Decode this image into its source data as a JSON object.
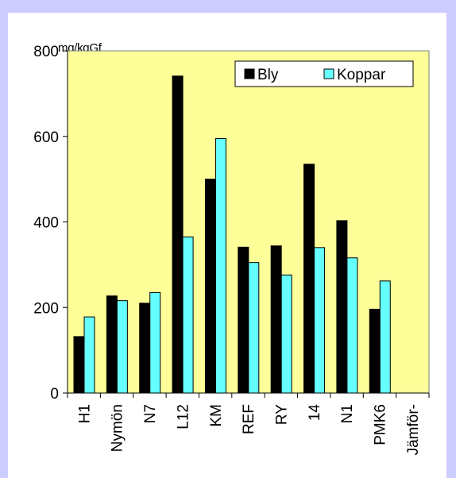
{
  "chart_data": {
    "type": "bar",
    "title": "",
    "ylabel": "mg/kgGf",
    "xlabel": "",
    "ylim": [
      0,
      800
    ],
    "yticks": [
      0,
      200,
      400,
      600,
      800
    ],
    "categories": [
      "H1",
      "Nymön",
      "N7",
      "L12",
      "KM",
      "REF",
      "RY",
      "14",
      "N1",
      "PMK6",
      "Jämför-"
    ],
    "series": [
      {
        "name": "Bly",
        "color": "#000000",
        "values": [
          132,
          227,
          210,
          741,
          500,
          341,
          344,
          535,
          403,
          196,
          null
        ]
      },
      {
        "name": "Koppar",
        "color": "#66ffff",
        "values": [
          178,
          216,
          235,
          365,
          595,
          305,
          276,
          340,
          316,
          262,
          null
        ]
      }
    ],
    "legend_position": "top-right",
    "grid": false,
    "plot_background": "#ffff99",
    "frame_background": "#ccccff"
  }
}
